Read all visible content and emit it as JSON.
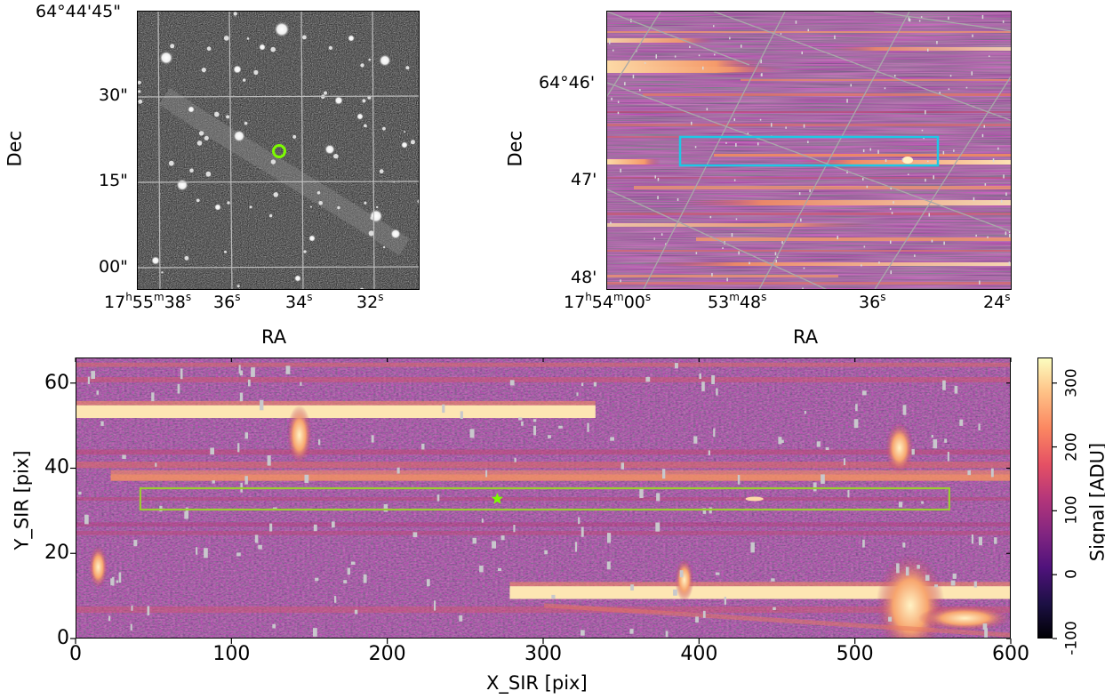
{
  "chart_data": [
    {
      "type": "image",
      "panel": "top-left",
      "title": "",
      "xlabel": "RA",
      "ylabel": "Dec",
      "colormap": "gray",
      "x_ticks": [
        "17h55m38s",
        "36s",
        "34s",
        "32s"
      ],
      "y_ticks": [
        "64°44'45\"",
        "30\"",
        "15\"",
        "00\""
      ],
      "marker": {
        "shape": "circle",
        "color": "#7cfc00"
      },
      "grid": true
    },
    {
      "type": "image",
      "panel": "top-right",
      "title": "",
      "xlabel": "RA",
      "ylabel": "Dec",
      "colormap": "magma",
      "x_ticks": [
        "17h54m00s",
        "53m48s",
        "36s",
        "24s"
      ],
      "y_ticks": [
        "64°46'",
        "47'",
        "48'"
      ],
      "overlay_box": {
        "color": "#1ec8e6"
      },
      "grid": true
    },
    {
      "type": "heatmap",
      "panel": "bottom",
      "xlabel": "X_SIR [pix]",
      "ylabel": "Y_SIR [pix]",
      "colormap": "magma",
      "xlim": [
        0,
        600
      ],
      "ylim": [
        0,
        66
      ],
      "x_ticks": [
        0,
        100,
        200,
        300,
        400,
        500,
        600
      ],
      "y_ticks": [
        0,
        20,
        40,
        60
      ],
      "colorbar": {
        "label": "Signal [ADU]",
        "ticks": [
          -100,
          0,
          100,
          200,
          300
        ],
        "range": [
          -100,
          340
        ]
      },
      "extraction_box": {
        "x": [
          41,
          560
        ],
        "y": [
          30.5,
          35.5
        ],
        "color": "#9acd32"
      },
      "source_marker": {
        "shape": "star",
        "x": 270,
        "y": 33,
        "color": "#7cfc00"
      },
      "bright_traces": [
        {
          "x": [
            0,
            333
          ],
          "y": 53.5,
          "width": 3
        },
        {
          "x": [
            278,
            600
          ],
          "y": 11,
          "width": 3
        },
        {
          "x": [
            22,
            600
          ],
          "y": 38,
          "width": 1.5
        }
      ]
    }
  ],
  "labels": {
    "tl_y_ticks": [
      "64°44'45\"",
      "30\"",
      "15\"",
      "00\""
    ],
    "tl_x": {
      "a_h": "17",
      "a_m": "55",
      "a_s": "38",
      "b": "36",
      "c": "34",
      "d": "32"
    },
    "tl_xlabel": "RA",
    "tl_ylabel": "Dec",
    "tr_y_ticks": [
      "64°46'",
      "47'",
      "48'"
    ],
    "tr_x": {
      "a_h": "17",
      "a_m": "54",
      "a_s": "00",
      "b_m": "53",
      "b_s": "48",
      "c": "36",
      "d": "24"
    },
    "tr_xlabel": "RA",
    "tr_ylabel": "Dec",
    "b_x_ticks": [
      "0",
      "100",
      "200",
      "300",
      "400",
      "500",
      "600"
    ],
    "b_y_ticks": [
      "0",
      "20",
      "40",
      "60"
    ],
    "b_xlabel": "X_SIR [pix]",
    "b_ylabel": "Y_SIR [pix]",
    "cb_ticks": [
      "-100",
      "0",
      "100",
      "200",
      "300"
    ],
    "cb_label": "Signal [ADU]"
  }
}
